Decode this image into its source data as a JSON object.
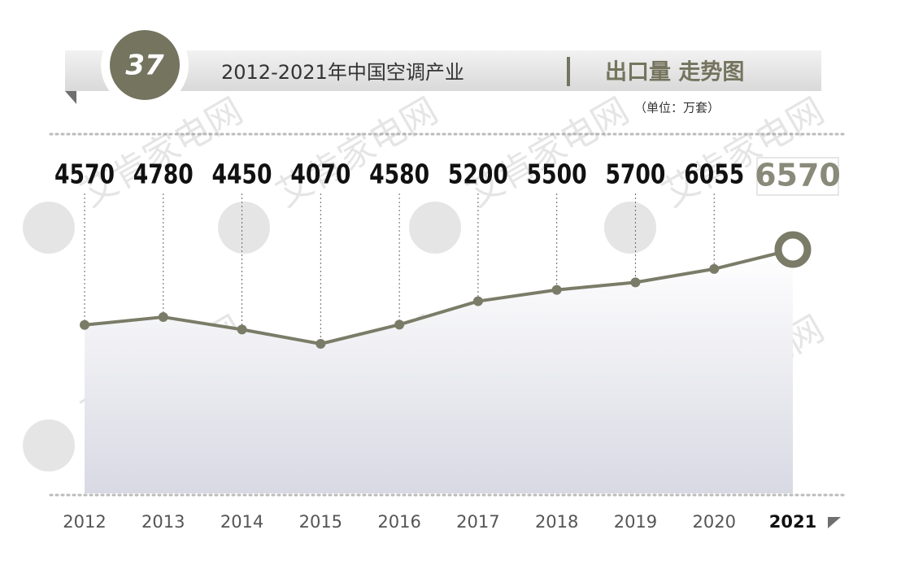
{
  "badge": "37",
  "chart_data": {
    "type": "line",
    "title": "2012-2021年中国空调产业",
    "subtitle": "出口量 走势图",
    "unit_label": "（单位：万套）",
    "categories": [
      "2012",
      "2013",
      "2014",
      "2015",
      "2016",
      "2017",
      "2018",
      "2019",
      "2020",
      "2021"
    ],
    "values": [
      4570,
      4780,
      4450,
      4070,
      4580,
      5200,
      5500,
      5700,
      6055,
      6570
    ],
    "color": "#7b7c68"
  },
  "watermark": "艾肯家电网"
}
